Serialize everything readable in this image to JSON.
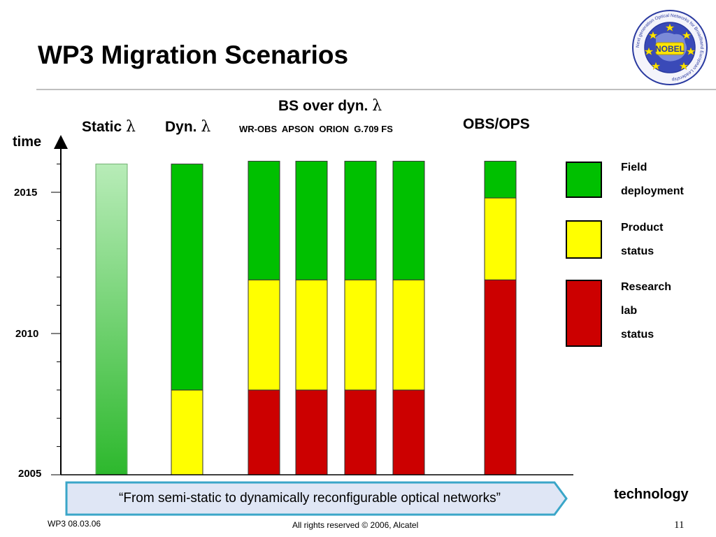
{
  "slide": {
    "title": "WP3 Migration Scenarios",
    "callout": "“From semi-static to dynamically reconfigurable optical networks”",
    "footer_left": "WP3 08.03.06",
    "footer_center": "All rights reserved © 2006, Alcatel",
    "page_number": "11"
  },
  "logo": {
    "text": "NOBEL",
    "ring_text": "Next generation Optical Networks for Broadband European Leadership",
    "icon": "nobel-logo"
  },
  "headers": {
    "static": "Static",
    "dyn": "Dyn.",
    "lambda": "λ",
    "bs_over_dyn": "BS over dyn.",
    "sub": [
      "WR-OBS",
      "APSON",
      "ORION",
      "G.709 FS"
    ],
    "obs_ops": "OBS/OPS"
  },
  "chart_data": {
    "type": "bar",
    "ylabel": "time",
    "xlabel": "technology",
    "ylim": [
      2005,
      2016.5
    ],
    "yticks": [
      2005,
      2010,
      2015
    ],
    "categories": [
      "Static λ",
      "Dyn. λ",
      "WR-OBS",
      "APSON",
      "ORION",
      "G.709 FS",
      "OBS/OPS"
    ],
    "series": [
      {
        "name": "Research lab status",
        "color": "#cc0000",
        "values": [
          null,
          null,
          2008.0,
          2008.0,
          2008.0,
          2008.0,
          2011.9
        ]
      },
      {
        "name": "Product status",
        "color": "#ffff00",
        "values": [
          null,
          2008.0,
          2011.9,
          2011.9,
          2011.9,
          2011.9,
          2014.8
        ]
      },
      {
        "name": "Field deployment",
        "color": "#00c000",
        "values": [
          2016.0,
          2016.0,
          2016.1,
          2016.1,
          2016.1,
          2016.1,
          2016.1
        ]
      }
    ],
    "gradient_bar": {
      "category": "Static λ",
      "color_top": "#b8ecb8",
      "color_bottom": "#2db82d"
    },
    "legend": [
      {
        "lines": [
          "Field",
          "deployment"
        ],
        "color": "#00c000"
      },
      {
        "lines": [
          "Product",
          "status"
        ],
        "color": "#ffff00"
      },
      {
        "lines": [
          "Research",
          "lab",
          "status"
        ],
        "color": "#cc0000"
      }
    ]
  }
}
